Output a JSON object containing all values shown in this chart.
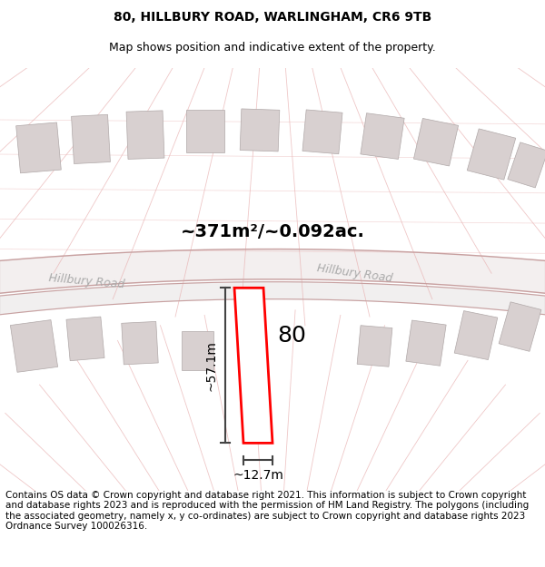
{
  "title_line1": "80, HILLBURY ROAD, WARLINGHAM, CR6 9TB",
  "title_line2": "Map shows position and indicative extent of the property.",
  "area_label": "~371m²/~0.092ac.",
  "width_label": "~12.7m",
  "height_label": "~57.1m",
  "number_label": "80",
  "road_label_left": "Hillbury Road",
  "road_label_right": "Hillbury Road",
  "footer_text": "Contains OS data © Crown copyright and database right 2021. This information is subject to Crown copyright and database rights 2023 and is reproduced with the permission of HM Land Registry. The polygons (including the associated geometry, namely x, y co-ordinates) are subject to Crown copyright and database rights 2023 Ordnance Survey 100026316.",
  "bg_color": "#ffffff",
  "map_bg": "#fdf5f5",
  "plot_color": "#ff0000",
  "plot_fill": "#ffffff",
  "building_color": "#d8d0d0",
  "road_line_color": "#e8b0b0",
  "road_label_color": "#aaaaaa",
  "dim_line_color": "#444444",
  "title_fontsize": 10,
  "subtitle_fontsize": 9,
  "area_fontsize": 14,
  "number_fontsize": 18,
  "footer_fontsize": 7.5
}
